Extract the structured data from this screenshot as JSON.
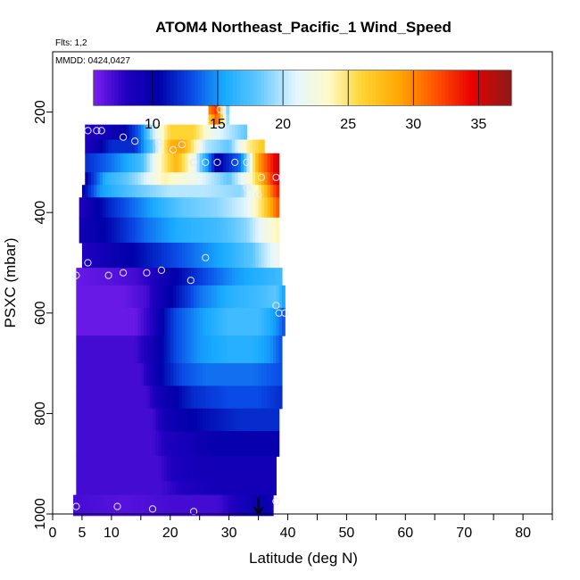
{
  "chart_data": {
    "type": "heatmap",
    "title": "ATOM4 Northeast_Pacific_1 Wind_Speed",
    "flights_note": "Flts: 1,2",
    "dates_note": "MMDD: 0424,0427",
    "xlabel": "Latitude (deg N)",
    "ylabel": "PSXC (mbar)",
    "xlim": [
      0,
      85
    ],
    "ylim": [
      1000,
      80
    ],
    "y_reversed": true,
    "x_ticks": [
      0,
      5,
      10,
      20,
      30,
      40,
      50,
      60,
      70,
      80
    ],
    "x_minor_ticks": [
      15,
      25,
      35,
      45,
      55,
      65,
      75,
      85
    ],
    "y_ticks": [
      200,
      400,
      600,
      800,
      1000
    ],
    "colorbar": {
      "range": [
        5.5,
        37.5
      ],
      "ticks": [
        10,
        15,
        20,
        25,
        30,
        35
      ],
      "stops": [
        {
          "v": 5.5,
          "c": "#7a1ff0"
        },
        {
          "v": 8.0,
          "c": "#2000c0"
        },
        {
          "v": 10.5,
          "c": "#0000a8"
        },
        {
          "v": 13.0,
          "c": "#0a4ae6"
        },
        {
          "v": 15.5,
          "c": "#18aaff"
        },
        {
          "v": 18.0,
          "c": "#5cc6ff"
        },
        {
          "v": 21.0,
          "c": "#e4f6ff"
        },
        {
          "v": 23.5,
          "c": "#fffaca"
        },
        {
          "v": 26.0,
          "c": "#ffd534"
        },
        {
          "v": 29.0,
          "c": "#ffa500"
        },
        {
          "v": 32.0,
          "c": "#ff4a00"
        },
        {
          "v": 34.5,
          "c": "#e80000"
        },
        {
          "v": 37.5,
          "c": "#8a1a1a"
        }
      ]
    },
    "arrow_marker_latitude": 35,
    "layers": [
      {
        "p0": 175,
        "p1": 205,
        "lat_min": 26.5,
        "lat_max": 30,
        "anchors": [
          [
            26.5,
            30
          ],
          [
            28,
            33
          ],
          [
            29,
            22
          ],
          [
            30,
            18
          ]
        ]
      },
      {
        "p0": 205,
        "p1": 225,
        "lat_min": 26.5,
        "lat_max": 30,
        "anchors": [
          [
            26.5,
            26
          ],
          [
            28,
            32
          ],
          [
            29,
            24
          ],
          [
            30,
            18
          ]
        ]
      },
      {
        "p0": 225,
        "p1": 255,
        "lat_min": 5.5,
        "lat_max": 33,
        "anchors": [
          [
            5.5,
            8
          ],
          [
            12,
            10
          ],
          [
            15,
            14
          ],
          [
            17,
            20
          ],
          [
            20,
            26
          ],
          [
            24,
            26
          ],
          [
            27,
            22
          ],
          [
            30,
            20
          ],
          [
            33,
            18
          ]
        ]
      },
      {
        "p0": 255,
        "p1": 282,
        "lat_min": 5.5,
        "lat_max": 36,
        "anchors": [
          [
            5.5,
            8
          ],
          [
            10,
            12
          ],
          [
            14,
            12
          ],
          [
            17,
            18
          ],
          [
            20,
            28
          ],
          [
            22,
            29
          ],
          [
            26,
            20
          ],
          [
            30,
            18
          ],
          [
            33,
            24
          ],
          [
            36,
            27
          ]
        ]
      },
      {
        "p0": 282,
        "p1": 320,
        "lat_min": 5.5,
        "lat_max": 38.5,
        "anchors": [
          [
            5.5,
            12
          ],
          [
            10,
            14
          ],
          [
            15,
            17
          ],
          [
            18,
            23
          ],
          [
            21,
            28
          ],
          [
            24,
            22
          ],
          [
            28,
            10
          ],
          [
            32,
            14
          ],
          [
            35,
            29
          ],
          [
            38.5,
            36
          ]
        ]
      },
      {
        "p0": 320,
        "p1": 345,
        "lat_min": 5.5,
        "lat_max": 38.5,
        "anchors": [
          [
            5.5,
            10
          ],
          [
            9,
            16
          ],
          [
            14,
            19
          ],
          [
            19,
            24
          ],
          [
            24,
            22
          ],
          [
            30,
            18
          ],
          [
            34,
            24
          ],
          [
            37,
            32
          ],
          [
            38.5,
            36
          ]
        ]
      },
      {
        "p0": 345,
        "p1": 370,
        "lat_min": 5,
        "lat_max": 38.5,
        "anchors": [
          [
            5,
            10
          ],
          [
            8,
            15
          ],
          [
            14,
            18
          ],
          [
            20,
            20
          ],
          [
            26,
            20
          ],
          [
            32,
            19
          ],
          [
            35,
            24
          ],
          [
            37,
            30
          ],
          [
            38.5,
            34
          ]
        ]
      },
      {
        "p0": 370,
        "p1": 410,
        "lat_min": 4.5,
        "lat_max": 38.5,
        "anchors": [
          [
            4.5,
            8
          ],
          [
            10,
            12
          ],
          [
            16,
            15
          ],
          [
            22,
            18
          ],
          [
            28,
            19
          ],
          [
            33,
            21
          ],
          [
            36,
            26
          ],
          [
            38.5,
            32
          ]
        ]
      },
      {
        "p0": 410,
        "p1": 460,
        "lat_min": 4.5,
        "lat_max": 38.5,
        "anchors": [
          [
            4.5,
            9
          ],
          [
            10,
            11
          ],
          [
            16,
            14
          ],
          [
            22,
            16
          ],
          [
            28,
            17
          ],
          [
            33,
            19
          ],
          [
            36,
            22
          ],
          [
            38.5,
            24
          ]
        ]
      },
      {
        "p0": 460,
        "p1": 510,
        "lat_min": 5,
        "lat_max": 38.5,
        "anchors": [
          [
            5,
            8
          ],
          [
            12,
            10
          ],
          [
            18,
            12
          ],
          [
            24,
            14
          ],
          [
            30,
            16
          ],
          [
            34,
            18
          ],
          [
            36,
            20
          ],
          [
            38.5,
            22
          ]
        ]
      },
      {
        "p0": 510,
        "p1": 545,
        "lat_min": 4,
        "lat_max": 39,
        "anchors": [
          [
            4,
            6
          ],
          [
            10,
            6.5
          ],
          [
            14,
            7
          ],
          [
            17,
            8
          ],
          [
            20,
            10
          ],
          [
            22,
            11
          ],
          [
            26,
            13
          ],
          [
            31,
            15
          ],
          [
            35,
            16
          ],
          [
            39,
            17
          ]
        ]
      },
      {
        "p0": 545,
        "p1": 590,
        "lat_min": 4,
        "lat_max": 39.5,
        "anchors": [
          [
            4,
            6
          ],
          [
            12,
            6
          ],
          [
            16,
            7
          ],
          [
            18,
            9
          ],
          [
            21,
            11
          ],
          [
            25,
            14
          ],
          [
            30,
            16
          ],
          [
            35,
            17
          ],
          [
            38,
            18
          ],
          [
            39.5,
            15
          ]
        ]
      },
      {
        "p0": 590,
        "p1": 645,
        "lat_min": 4,
        "lat_max": 39.5,
        "anchors": [
          [
            4,
            6
          ],
          [
            14,
            6
          ],
          [
            17,
            8
          ],
          [
            19,
            11
          ],
          [
            21,
            13
          ],
          [
            25,
            15
          ],
          [
            30,
            17
          ],
          [
            35,
            17
          ],
          [
            38,
            15
          ],
          [
            39.5,
            13
          ]
        ]
      },
      {
        "p0": 645,
        "p1": 700,
        "lat_min": 4,
        "lat_max": 39,
        "anchors": [
          [
            4,
            7
          ],
          [
            14,
            7
          ],
          [
            17,
            9
          ],
          [
            19,
            11
          ],
          [
            21,
            13
          ],
          [
            25,
            15
          ],
          [
            30,
            16
          ],
          [
            34,
            16
          ],
          [
            37,
            15
          ],
          [
            39,
            13
          ]
        ]
      },
      {
        "p0": 700,
        "p1": 745,
        "lat_min": 4,
        "lat_max": 39,
        "anchors": [
          [
            4,
            7
          ],
          [
            15,
            7
          ],
          [
            17,
            9
          ],
          [
            19,
            11
          ],
          [
            22,
            13
          ],
          [
            26,
            14
          ],
          [
            30,
            14
          ],
          [
            34,
            14
          ],
          [
            39,
            13
          ]
        ]
      },
      {
        "p0": 745,
        "p1": 790,
        "lat_min": 4,
        "lat_max": 39,
        "anchors": [
          [
            4,
            7
          ],
          [
            16,
            7
          ],
          [
            18,
            9
          ],
          [
            20,
            10
          ],
          [
            24,
            12
          ],
          [
            30,
            13
          ],
          [
            35,
            13
          ],
          [
            39,
            12
          ]
        ]
      },
      {
        "p0": 790,
        "p1": 835,
        "lat_min": 4,
        "lat_max": 38.5,
        "anchors": [
          [
            4,
            7
          ],
          [
            17,
            7
          ],
          [
            19,
            9
          ],
          [
            22,
            10
          ],
          [
            26,
            11
          ],
          [
            32,
            12
          ],
          [
            38.5,
            12
          ]
        ]
      },
      {
        "p0": 835,
        "p1": 885,
        "lat_min": 4,
        "lat_max": 38.5,
        "anchors": [
          [
            4,
            7
          ],
          [
            17,
            7
          ],
          [
            19,
            8
          ],
          [
            23,
            9
          ],
          [
            28,
            10
          ],
          [
            34,
            10
          ],
          [
            38.5,
            10
          ]
        ]
      },
      {
        "p0": 885,
        "p1": 935,
        "lat_min": 4,
        "lat_max": 38,
        "anchors": [
          [
            4,
            7
          ],
          [
            18,
            7
          ],
          [
            20,
            8
          ],
          [
            25,
            9
          ],
          [
            30,
            9
          ],
          [
            38,
            9
          ]
        ]
      },
      {
        "p0": 935,
        "p1": 962,
        "lat_min": 4,
        "lat_max": 38,
        "anchors": [
          [
            4,
            7
          ],
          [
            18,
            7
          ],
          [
            22,
            8
          ],
          [
            28,
            9
          ],
          [
            38,
            9
          ]
        ]
      },
      {
        "p0": 962,
        "p1": 1003,
        "lat_min": 3.5,
        "lat_max": 37.5,
        "anchors": [
          [
            3.5,
            7
          ],
          [
            12,
            6.5
          ],
          [
            20,
            7
          ],
          [
            28,
            7
          ],
          [
            33,
            9
          ],
          [
            36,
            10
          ],
          [
            37.5,
            9
          ]
        ]
      }
    ],
    "sample_points": [
      {
        "lat": 28.5,
        "p": 195
      },
      {
        "lat": 6,
        "p": 237
      },
      {
        "lat": 7.5,
        "p": 237
      },
      {
        "lat": 8.3,
        "p": 237
      },
      {
        "lat": 12,
        "p": 250
      },
      {
        "lat": 14,
        "p": 258
      },
      {
        "lat": 18,
        "p": 260
      },
      {
        "lat": 20.5,
        "p": 275
      },
      {
        "lat": 22,
        "p": 265
      },
      {
        "lat": 24,
        "p": 300
      },
      {
        "lat": 26,
        "p": 300
      },
      {
        "lat": 28,
        "p": 300
      },
      {
        "lat": 31,
        "p": 300
      },
      {
        "lat": 33,
        "p": 300
      },
      {
        "lat": 35.5,
        "p": 330
      },
      {
        "lat": 38,
        "p": 330
      },
      {
        "lat": 33,
        "p": 350
      },
      {
        "lat": 35,
        "p": 365
      },
      {
        "lat": 6,
        "p": 500
      },
      {
        "lat": 26,
        "p": 490
      },
      {
        "lat": 4,
        "p": 525
      },
      {
        "lat": 9.5,
        "p": 525
      },
      {
        "lat": 12,
        "p": 520
      },
      {
        "lat": 16,
        "p": 520
      },
      {
        "lat": 18.5,
        "p": 515
      },
      {
        "lat": 23.5,
        "p": 535
      },
      {
        "lat": 38,
        "p": 585
      },
      {
        "lat": 38.5,
        "p": 600
      },
      {
        "lat": 39.5,
        "p": 600
      },
      {
        "lat": 4,
        "p": 985
      },
      {
        "lat": 11,
        "p": 985
      },
      {
        "lat": 17,
        "p": 990
      },
      {
        "lat": 24,
        "p": 995
      },
      {
        "lat": 38,
        "p": 975
      }
    ]
  }
}
